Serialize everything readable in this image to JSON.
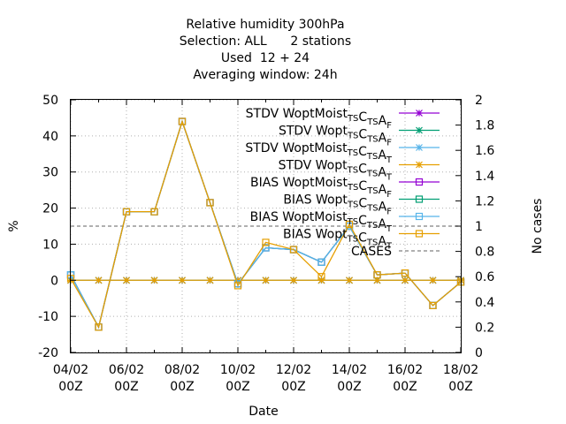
{
  "chart_data": {
    "type": "line",
    "title_lines": [
      "Relative humidity 300hPa",
      "Selection: ALL      2 stations",
      "Used  12 + 24",
      "Averaging window: 24h"
    ],
    "xlabel": "Date",
    "ylabel": "%",
    "y2label": "No cases",
    "x_ticks": [
      "04/02\n00Z",
      "06/02\n00Z",
      "08/02\n00Z",
      "10/02\n00Z",
      "12/02\n00Z",
      "14/02\n00Z",
      "16/02\n00Z",
      "18/02\n00Z"
    ],
    "x_tick_lines": [
      [
        "04/02",
        "00Z"
      ],
      [
        "06/02",
        "00Z"
      ],
      [
        "08/02",
        "00Z"
      ],
      [
        "10/02",
        "00Z"
      ],
      [
        "12/02",
        "00Z"
      ],
      [
        "14/02",
        "00Z"
      ],
      [
        "16/02",
        "00Z"
      ],
      [
        "18/02",
        "00Z"
      ]
    ],
    "x_days": [
      4,
      5,
      6,
      7,
      8,
      9,
      10,
      11,
      12,
      13,
      14,
      15,
      16,
      17,
      18
    ],
    "xlim": [
      4,
      18
    ],
    "ylim": [
      -20,
      50
    ],
    "y_ticks": [
      -20,
      -10,
      0,
      10,
      20,
      30,
      40,
      50
    ],
    "y2lim": [
      0,
      2
    ],
    "y2_ticks": [
      "0",
      "0.2",
      "0.4",
      "0.6",
      "0.8",
      "1",
      "1.2",
      "1.4",
      "1.6",
      "1.8",
      "2"
    ],
    "grid": true,
    "legend_position": "top-right",
    "series": [
      {
        "name": "STDV WoptMoist_TS C_TS A_F",
        "label_parts": [
          [
            "STDV WoptMoist",
            ""
          ],
          [
            "TS",
            "sub"
          ],
          [
            "C",
            ""
          ],
          [
            "TS",
            "sub"
          ],
          [
            "A",
            ""
          ],
          [
            "F",
            "sub"
          ]
        ],
        "color": "#9400d3",
        "marker": "star",
        "values": [
          0,
          0,
          0,
          0,
          0,
          0,
          0,
          0,
          0,
          0,
          0,
          0,
          0,
          0,
          0
        ]
      },
      {
        "name": "STDV Wopt_TS C_TS A_F",
        "label_parts": [
          [
            "STDV Wopt",
            ""
          ],
          [
            "TS",
            "sub"
          ],
          [
            "C",
            ""
          ],
          [
            "TS",
            "sub"
          ],
          [
            "A",
            ""
          ],
          [
            "F",
            "sub"
          ]
        ],
        "color": "#009e73",
        "marker": "star",
        "values": [
          0,
          0,
          0,
          0,
          0,
          0,
          0,
          0,
          0,
          0,
          0,
          0,
          0,
          0,
          0
        ]
      },
      {
        "name": "STDV WoptMoist_TS C_TS A_T",
        "label_parts": [
          [
            "STDV WoptMoist",
            ""
          ],
          [
            "TS",
            "sub"
          ],
          [
            "C",
            ""
          ],
          [
            "TS",
            "sub"
          ],
          [
            "A",
            ""
          ],
          [
            "T",
            "sub"
          ]
        ],
        "color": "#56b4e9",
        "marker": "star",
        "values": [
          0,
          0,
          0,
          0,
          0,
          0,
          0,
          0,
          0,
          0,
          0,
          0,
          0,
          0,
          0
        ]
      },
      {
        "name": "STDV Wopt_TS C_TS A_T",
        "label_parts": [
          [
            "STDV Wopt",
            ""
          ],
          [
            "TS",
            "sub"
          ],
          [
            "C",
            ""
          ],
          [
            "TS",
            "sub"
          ],
          [
            "A",
            ""
          ],
          [
            "T",
            "sub"
          ]
        ],
        "color": "#e69f00",
        "marker": "star",
        "values": [
          0,
          0,
          0,
          0,
          0,
          0,
          0,
          0,
          0,
          0,
          0,
          0,
          0,
          0,
          0
        ]
      },
      {
        "name": "BIAS WoptMoist_TS C_TS A_F",
        "label_parts": [
          [
            "BIAS WoptMoist",
            ""
          ],
          [
            "TS",
            "sub"
          ],
          [
            "C",
            ""
          ],
          [
            "TS",
            "sub"
          ],
          [
            "A",
            ""
          ],
          [
            "F",
            "sub"
          ]
        ],
        "color": "#9400d3",
        "marker": "square",
        "values": [
          1.5,
          -13,
          19,
          19,
          44,
          21.5,
          -1,
          9,
          8.5,
          5,
          15,
          1.5,
          2,
          -7,
          -0.5
        ]
      },
      {
        "name": "BIAS Wopt_TS C_TS A_F",
        "label_parts": [
          [
            "BIAS Wopt",
            ""
          ],
          [
            "TS",
            "sub"
          ],
          [
            "C",
            ""
          ],
          [
            "TS",
            "sub"
          ],
          [
            "A",
            ""
          ],
          [
            "F",
            "sub"
          ]
        ],
        "color": "#009e73",
        "marker": "square",
        "values": [
          1.5,
          -13,
          19,
          19,
          44,
          21.5,
          -1,
          9,
          8.5,
          5,
          15,
          1.5,
          2,
          -7,
          -0.5
        ]
      },
      {
        "name": "BIAS WoptMoist_TS C_TS A_T",
        "label_parts": [
          [
            "BIAS WoptMoist",
            ""
          ],
          [
            "TS",
            "sub"
          ],
          [
            "C",
            ""
          ],
          [
            "TS",
            "sub"
          ],
          [
            "A",
            ""
          ],
          [
            "T",
            "sub"
          ]
        ],
        "color": "#56b4e9",
        "marker": "square",
        "values": [
          1.5,
          -13,
          19,
          19,
          44,
          21.5,
          -1,
          9,
          8.5,
          5,
          15,
          1.5,
          2,
          -7,
          -0.5
        ]
      },
      {
        "name": "BIAS Wopt_TS C_TS A_T",
        "label_parts": [
          [
            "BIAS Wopt",
            ""
          ],
          [
            "TS",
            "sub"
          ],
          [
            "C",
            ""
          ],
          [
            "TS",
            "sub"
          ],
          [
            "A",
            ""
          ],
          [
            "T",
            "sub"
          ]
        ],
        "color": "#e69f00",
        "marker": "square",
        "values": [
          0.5,
          -13,
          19,
          19,
          44,
          21.5,
          -1.5,
          10.5,
          8.5,
          1,
          15.5,
          1.5,
          2,
          -7,
          -0.5
        ]
      }
    ],
    "cases": {
      "name": "CASES",
      "color": "#808080",
      "dashed": true,
      "value": 1
    }
  }
}
